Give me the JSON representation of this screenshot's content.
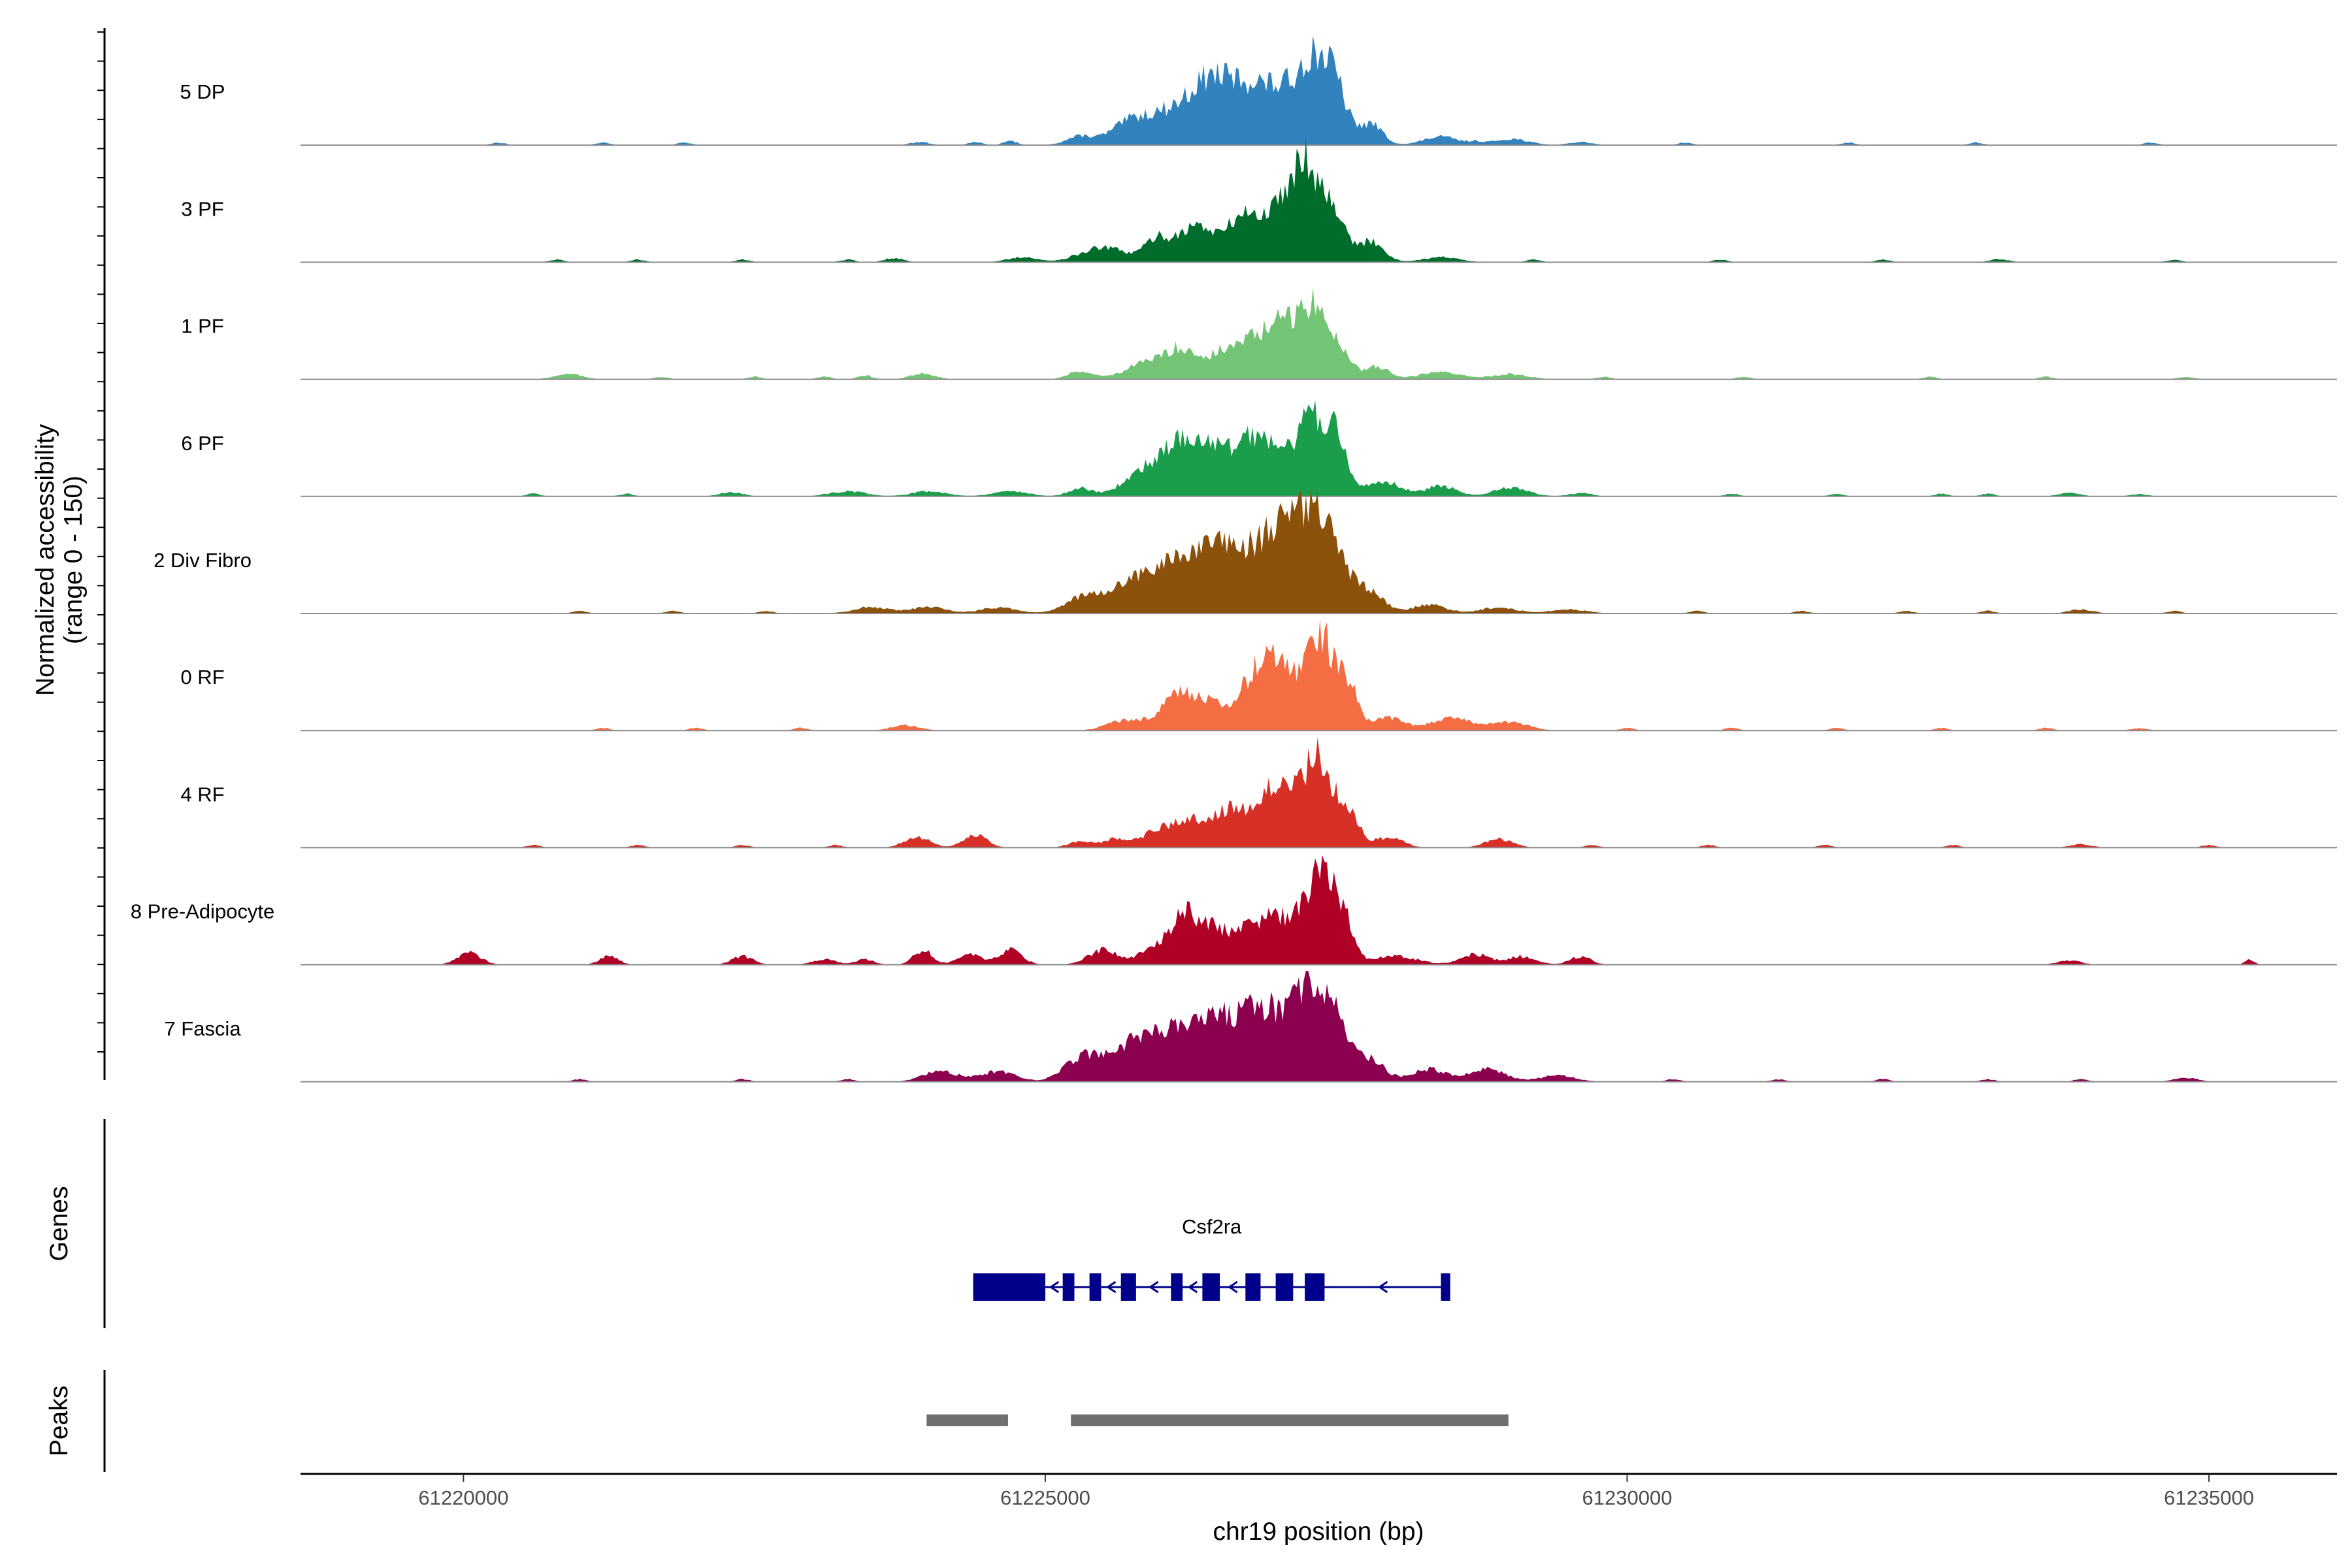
{
  "chart_data": {
    "type": "area",
    "title": "",
    "ylabel_line1": "Normalized accessibility",
    "ylabel_line2": "(range 0 - 150)",
    "xlabel": "chr19 position (bp)",
    "xlim": [
      61218600,
      61236100
    ],
    "ylim": [
      0,
      150
    ],
    "x_ticks": [
      61220000,
      61225000,
      61230000,
      61235000
    ],
    "x_tick_labels": [
      "61220000",
      "61225000",
      "61230000",
      "61235000"
    ],
    "series": [
      {
        "name": "5 DP",
        "color": "#3182bd",
        "peaks": [
          [
            61223920,
            3,
            80
          ],
          [
            61224400,
            3,
            60
          ],
          [
            61224700,
            4,
            60
          ],
          [
            61225300,
            8,
            120
          ],
          [
            61225700,
            12,
            150
          ],
          [
            61226100,
            33,
            280
          ],
          [
            61226450,
            47,
            170
          ],
          [
            61226750,
            40,
            150
          ],
          [
            61227000,
            40,
            150
          ],
          [
            61227300,
            78,
            140
          ],
          [
            61227500,
            40,
            100
          ],
          [
            61227800,
            20,
            100
          ],
          [
            61228400,
            8,
            150
          ],
          [
            61229000,
            6,
            150
          ],
          [
            61229600,
            3,
            100
          ]
        ],
        "noise": [
          61220300,
          61221200,
          61221900,
          61228700,
          61230500,
          61231900,
          61233000,
          61234500
        ]
      },
      {
        "name": "3 PF",
        "color": "#006d2c",
        "peaks": [
          [
            61223700,
            4,
            80
          ],
          [
            61224800,
            5,
            120
          ],
          [
            61225500,
            14,
            200
          ],
          [
            61225950,
            18,
            100
          ],
          [
            61226300,
            35,
            180
          ],
          [
            61226700,
            40,
            120
          ],
          [
            61227000,
            45,
            140
          ],
          [
            61227250,
            90,
            130
          ],
          [
            61227500,
            40,
            90
          ],
          [
            61227800,
            20,
            110
          ],
          [
            61228400,
            5,
            150
          ],
          [
            61233200,
            3,
            80
          ]
        ],
        "noise": [
          61220800,
          61221500,
          61222400,
          61223300,
          61229200,
          61230800,
          61232200,
          61234700
        ]
      },
      {
        "name": "1 PF",
        "color": "#74c476",
        "peaks": [
          [
            61220900,
            5,
            120
          ],
          [
            61223450,
            4,
            60
          ],
          [
            61223950,
            6,
            100
          ],
          [
            61225300,
            8,
            100
          ],
          [
            61225900,
            16,
            200
          ],
          [
            61226200,
            25,
            140
          ],
          [
            61226500,
            15,
            100
          ],
          [
            61226800,
            40,
            180
          ],
          [
            61227050,
            35,
            110
          ],
          [
            61227300,
            70,
            120
          ],
          [
            61227550,
            25,
            90
          ],
          [
            61227850,
            12,
            100
          ],
          [
            61228400,
            7,
            180
          ],
          [
            61229000,
            5,
            150
          ],
          [
            61234800,
            2,
            80
          ]
        ],
        "noise": [
          61221700,
          61222500,
          61223100,
          61229800,
          61231000,
          61232600,
          61233600
        ]
      },
      {
        "name": "6 PF",
        "color": "#1b9e4b",
        "peaks": [
          [
            61222300,
            4,
            100
          ],
          [
            61223300,
            5,
            150
          ],
          [
            61224000,
            5,
            150
          ],
          [
            61224700,
            5,
            150
          ],
          [
            61225300,
            8,
            100
          ],
          [
            61225800,
            18,
            160
          ],
          [
            61226100,
            38,
            160
          ],
          [
            61226400,
            45,
            180
          ],
          [
            61226750,
            38,
            140
          ],
          [
            61227000,
            45,
            150
          ],
          [
            61227300,
            70,
            110
          ],
          [
            61227500,
            50,
            90
          ],
          [
            61227900,
            15,
            150
          ],
          [
            61228400,
            10,
            130
          ],
          [
            61229000,
            8,
            150
          ],
          [
            61229600,
            3,
            100
          ],
          [
            61233800,
            3,
            100
          ],
          [
            61234400,
            2,
            80
          ]
        ],
        "noise": [
          61220600,
          61221400,
          61230900,
          61231800,
          61232700,
          61233100
        ]
      },
      {
        "name": "2 Div Fibro",
        "color": "#8c510a",
        "peaks": [
          [
            61223500,
            6,
            150
          ],
          [
            61224000,
            6,
            150
          ],
          [
            61224600,
            6,
            150
          ],
          [
            61225300,
            12,
            150
          ],
          [
            61225700,
            22,
            220
          ],
          [
            61226100,
            40,
            230
          ],
          [
            61226500,
            50,
            200
          ],
          [
            61226900,
            55,
            200
          ],
          [
            61227150,
            60,
            150
          ],
          [
            61227400,
            70,
            150
          ],
          [
            61227750,
            22,
            140
          ],
          [
            61228300,
            8,
            150
          ],
          [
            61228900,
            6,
            150
          ],
          [
            61229500,
            4,
            150
          ],
          [
            61233900,
            4,
            100
          ]
        ],
        "noise": [
          61221000,
          61221800,
          61222600,
          61230600,
          61231500,
          61232400,
          61233100,
          61234700
        ]
      },
      {
        "name": "0 RF",
        "color": "#f46d43",
        "peaks": [
          [
            61223800,
            5,
            120
          ],
          [
            61225700,
            10,
            160
          ],
          [
            61226150,
            35,
            150
          ],
          [
            61226450,
            20,
            140
          ],
          [
            61226850,
            60,
            160
          ],
          [
            61227050,
            40,
            100
          ],
          [
            61227350,
            95,
            120
          ],
          [
            61227600,
            40,
            90
          ],
          [
            61227950,
            12,
            130
          ],
          [
            61228500,
            12,
            180
          ],
          [
            61229000,
            8,
            150
          ],
          [
            61234400,
            2,
            80
          ]
        ],
        "noise": [
          61221200,
          61222000,
          61222900,
          61230000,
          61230900,
          61231800,
          61232700,
          61233600
        ]
      },
      {
        "name": "4 RF",
        "color": "#d73027",
        "peaks": [
          [
            61223900,
            10,
            110
          ],
          [
            61224400,
            12,
            100
          ],
          [
            61225300,
            6,
            100
          ],
          [
            61225600,
            8,
            100
          ],
          [
            61226000,
            18,
            150
          ],
          [
            61226350,
            25,
            170
          ],
          [
            61226650,
            30,
            140
          ],
          [
            61226950,
            50,
            130
          ],
          [
            61227150,
            30,
            100
          ],
          [
            61227350,
            85,
            110
          ],
          [
            61227600,
            35,
            90
          ],
          [
            61227950,
            10,
            120
          ],
          [
            61228900,
            8,
            120
          ],
          [
            61233900,
            3,
            100
          ]
        ],
        "noise": [
          61220600,
          61221500,
          61222400,
          61223200,
          61229700,
          61230700,
          61231700,
          61232800,
          61235000
        ]
      },
      {
        "name": "8 Pre-Adipocyte",
        "color": "#b10026",
        "peaks": [
          [
            61220050,
            12,
            100
          ],
          [
            61221250,
            8,
            80
          ],
          [
            61222400,
            8,
            90
          ],
          [
            61223100,
            5,
            100
          ],
          [
            61223450,
            5,
            80
          ],
          [
            61223950,
            14,
            80
          ],
          [
            61224350,
            10,
            100
          ],
          [
            61224700,
            14,
            100
          ],
          [
            61225500,
            14,
            130
          ],
          [
            61225900,
            12,
            120
          ],
          [
            61226200,
            50,
            130
          ],
          [
            61226450,
            28,
            100
          ],
          [
            61226700,
            32,
            120
          ],
          [
            61226950,
            45,
            100
          ],
          [
            61227150,
            28,
            90
          ],
          [
            61227350,
            85,
            110
          ],
          [
            61227550,
            45,
            90
          ],
          [
            61228000,
            8,
            200
          ],
          [
            61228700,
            10,
            120
          ],
          [
            61229100,
            8,
            120
          ],
          [
            61229600,
            8,
            90
          ],
          [
            61233800,
            4,
            100
          ],
          [
            61235350,
            5,
            40
          ]
        ],
        "noise": []
      },
      {
        "name": "7 Fascia",
        "color": "#8c0050",
        "peaks": [
          [
            61224100,
            10,
            150
          ],
          [
            61224600,
            10,
            150
          ],
          [
            61225300,
            20,
            150
          ],
          [
            61225700,
            32,
            200
          ],
          [
            61226100,
            40,
            200
          ],
          [
            61226500,
            50,
            200
          ],
          [
            61226900,
            60,
            200
          ],
          [
            61227250,
            70,
            150
          ],
          [
            61227500,
            50,
            120
          ],
          [
            61227800,
            20,
            120
          ],
          [
            61228300,
            12,
            150
          ],
          [
            61228800,
            12,
            150
          ],
          [
            61229400,
            6,
            150
          ],
          [
            61234800,
            4,
            100
          ]
        ],
        "noise": [
          61221000,
          61222400,
          61223300,
          61230400,
          61231300,
          61232200,
          61233100,
          61233900
        ]
      }
    ],
    "genes_label": "Genes",
    "gene": {
      "name": "Csf2ra",
      "start": 61224380,
      "end": 61228480,
      "strand": "-",
      "exons": [
        [
          61224380,
          61225000
        ],
        [
          61225150,
          61225250
        ],
        [
          61225380,
          61225480
        ],
        [
          61225650,
          61225780
        ],
        [
          61226080,
          61226180
        ],
        [
          61226350,
          61226500
        ],
        [
          61226720,
          61226850
        ],
        [
          61226980,
          61227130
        ],
        [
          61227230,
          61227400
        ],
        [
          61228400,
          61228480
        ]
      ]
    },
    "peaks_label": "Peaks",
    "peak_regions": [
      [
        61223980,
        61224680
      ],
      [
        61225220,
        61228980
      ]
    ]
  }
}
